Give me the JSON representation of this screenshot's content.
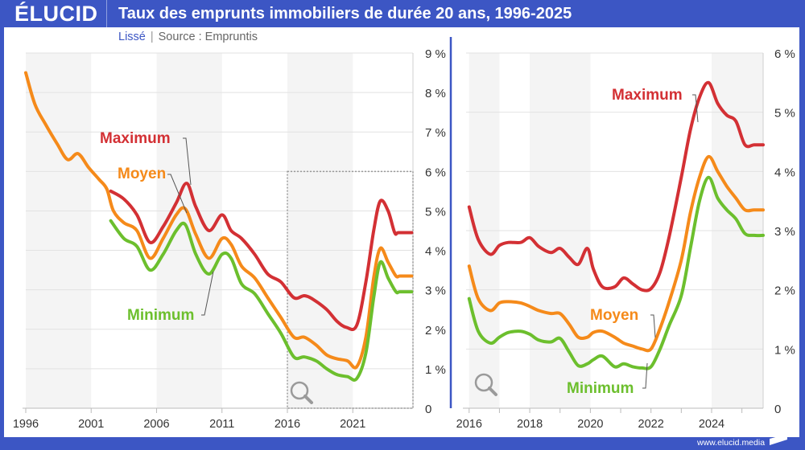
{
  "header": {
    "logo": "ÉLUCID",
    "title": "Taux des emprunts immobiliers de durée 20 ans, 1996-2025",
    "subtitle_mode": "Lissé",
    "subtitle_source": "Source : Empruntis"
  },
  "footer": {
    "url": "www.elucid.media"
  },
  "colors": {
    "brand": "#3c56c4",
    "maximum": "#d33034",
    "moyen": "#f58a1a",
    "minimum": "#6cbf2d"
  },
  "chart_data": [
    {
      "type": "line",
      "title": "Taux des emprunts immobiliers de durée 20 ans, 1996-2025",
      "xlabel": "",
      "ylabel": "",
      "xlim": [
        1996,
        2025.6
      ],
      "ylim": [
        0,
        9
      ],
      "x_ticks": [
        1996,
        2001,
        2006,
        2011,
        2016,
        2021
      ],
      "y_ticks": [
        {
          "v": 0,
          "label": "0"
        },
        {
          "v": 1,
          "label": "1 %"
        },
        {
          "v": 2,
          "label": "2 %"
        },
        {
          "v": 3,
          "label": "3 %"
        },
        {
          "v": 4,
          "label": "4 %"
        },
        {
          "v": 5,
          "label": "5 %"
        },
        {
          "v": 6,
          "label": "6 %"
        },
        {
          "v": 7,
          "label": "7 %"
        },
        {
          "v": 8,
          "label": "8 %"
        },
        {
          "v": 9,
          "label": "9 %"
        }
      ],
      "grid": true,
      "zoom_box": {
        "x_range": [
          2016,
          2025.6
        ],
        "y_range": [
          0,
          6
        ]
      },
      "series": [
        {
          "name": "Maximum",
          "key": "maximum",
          "x": [
            2002.5,
            2003.5,
            2004.5,
            2005.5,
            2006.5,
            2007.5,
            2008.3,
            2009,
            2010,
            2011,
            2011.7,
            2012.5,
            2013.5,
            2014.5,
            2015.5,
            2016.5,
            2017.3,
            2018,
            2019,
            2019.8,
            2020.5,
            2021.3,
            2022,
            2022.6,
            2023.1,
            2023.7,
            2024.2,
            2024.5,
            2025.5
          ],
          "y": [
            5.5,
            5.3,
            4.9,
            4.2,
            4.6,
            5.2,
            5.7,
            5.1,
            4.5,
            4.9,
            4.5,
            4.3,
            3.9,
            3.4,
            3.2,
            2.8,
            2.85,
            2.75,
            2.5,
            2.2,
            2.05,
            2.1,
            3.2,
            4.5,
            5.25,
            5.0,
            4.45,
            4.45,
            4.45
          ]
        },
        {
          "name": "Moyen",
          "key": "moyen",
          "x": [
            1996,
            1996.7,
            1997.5,
            1998.4,
            1999.2,
            2000,
            2000.8,
            2001.6,
            2002.2,
            2002.7,
            2003.5,
            2004.5,
            2005.5,
            2006.5,
            2007.5,
            2008.2,
            2009,
            2010,
            2011,
            2011.7,
            2012.5,
            2013.5,
            2014.5,
            2015.5,
            2016.5,
            2017.3,
            2018.2,
            2019,
            2019.8,
            2020.6,
            2021.3,
            2022,
            2022.6,
            2023.1,
            2023.7,
            2024.3,
            2024.6,
            2025.5
          ],
          "y": [
            8.5,
            7.7,
            7.2,
            6.7,
            6.3,
            6.45,
            6.1,
            5.8,
            5.55,
            5.0,
            4.7,
            4.5,
            3.8,
            4.3,
            4.9,
            5.05,
            4.4,
            3.8,
            4.3,
            4.15,
            3.6,
            3.3,
            2.8,
            2.3,
            1.8,
            1.8,
            1.6,
            1.35,
            1.25,
            1.2,
            1.05,
            1.8,
            3.3,
            4.05,
            3.7,
            3.35,
            3.35,
            3.35
          ]
        },
        {
          "name": "Minimum",
          "key": "minimum",
          "x": [
            2002.5,
            2003.5,
            2004.5,
            2005.5,
            2006.5,
            2007.5,
            2008.2,
            2009,
            2010,
            2011,
            2011.7,
            2012.5,
            2013.5,
            2014.5,
            2015.5,
            2016.5,
            2017.3,
            2018.2,
            2019,
            2019.8,
            2020.6,
            2021.3,
            2022,
            2022.6,
            2023.1,
            2023.7,
            2024.3,
            2024.6,
            2025.5
          ],
          "y": [
            4.75,
            4.3,
            4.1,
            3.5,
            3.9,
            4.5,
            4.65,
            3.9,
            3.4,
            3.9,
            3.8,
            3.15,
            2.9,
            2.4,
            1.9,
            1.3,
            1.3,
            1.2,
            1.0,
            0.85,
            0.8,
            0.75,
            1.4,
            2.8,
            3.7,
            3.3,
            2.95,
            2.95,
            2.95
          ]
        }
      ],
      "annotations": [
        {
          "text": "Maximum",
          "series": "maximum"
        },
        {
          "text": "Moyen",
          "series": "moyen"
        },
        {
          "text": "Minimum",
          "series": "minimum"
        }
      ]
    },
    {
      "type": "line",
      "title": "Zoom 2016-2025",
      "xlabel": "",
      "ylabel": "",
      "xlim": [
        2015.9,
        2025.7
      ],
      "ylim": [
        0,
        6
      ],
      "x_ticks": [
        2016,
        2018,
        2020,
        2022,
        2024
      ],
      "y_ticks": [
        {
          "v": 0,
          "label": "0"
        },
        {
          "v": 1,
          "label": "1 %"
        },
        {
          "v": 2,
          "label": "2 %"
        },
        {
          "v": 3,
          "label": "3 %"
        },
        {
          "v": 4,
          "label": "4 %"
        },
        {
          "v": 5,
          "label": "5 %"
        },
        {
          "v": 6,
          "label": "6 %"
        }
      ],
      "grid": true,
      "series": [
        {
          "name": "Maximum",
          "key": "maximum",
          "x": [
            2016,
            2016.3,
            2016.7,
            2017,
            2017.3,
            2017.7,
            2018,
            2018.3,
            2018.7,
            2019,
            2019.3,
            2019.6,
            2019.9,
            2020.1,
            2020.4,
            2020.8,
            2021.1,
            2021.4,
            2021.7,
            2022,
            2022.3,
            2022.6,
            2023,
            2023.3,
            2023.6,
            2023.9,
            2024.2,
            2024.5,
            2024.8,
            2025.1,
            2025.4,
            2025.7
          ],
          "y": [
            3.4,
            2.85,
            2.6,
            2.75,
            2.8,
            2.8,
            2.88,
            2.73,
            2.63,
            2.7,
            2.55,
            2.43,
            2.7,
            2.35,
            2.05,
            2.05,
            2.2,
            2.1,
            2.0,
            2.02,
            2.3,
            2.9,
            3.9,
            4.7,
            5.25,
            5.5,
            5.15,
            4.95,
            4.85,
            4.45,
            4.45,
            4.45
          ]
        },
        {
          "name": "Moyen",
          "key": "moyen",
          "x": [
            2016,
            2016.3,
            2016.7,
            2017,
            2017.3,
            2017.7,
            2018,
            2018.3,
            2018.7,
            2019,
            2019.3,
            2019.6,
            2019.9,
            2020.1,
            2020.4,
            2020.8,
            2021.1,
            2021.4,
            2021.7,
            2022,
            2022.3,
            2022.6,
            2023,
            2023.3,
            2023.6,
            2023.9,
            2024.2,
            2024.5,
            2024.8,
            2025.1,
            2025.4,
            2025.7
          ],
          "y": [
            2.4,
            1.85,
            1.65,
            1.78,
            1.8,
            1.78,
            1.72,
            1.65,
            1.6,
            1.6,
            1.42,
            1.2,
            1.2,
            1.28,
            1.3,
            1.2,
            1.1,
            1.05,
            1.0,
            1.0,
            1.35,
            1.8,
            2.5,
            3.3,
            3.9,
            4.25,
            4.0,
            3.75,
            3.55,
            3.35,
            3.35,
            3.35
          ]
        },
        {
          "name": "Minimum",
          "key": "minimum",
          "x": [
            2016,
            2016.3,
            2016.7,
            2017,
            2017.3,
            2017.7,
            2018,
            2018.3,
            2018.7,
            2019,
            2019.3,
            2019.6,
            2019.9,
            2020.1,
            2020.4,
            2020.8,
            2021.1,
            2021.4,
            2021.7,
            2022,
            2022.3,
            2022.6,
            2023,
            2023.3,
            2023.6,
            2023.9,
            2024.2,
            2024.5,
            2024.8,
            2025.1,
            2025.4,
            2025.7
          ],
          "y": [
            1.85,
            1.3,
            1.1,
            1.2,
            1.28,
            1.3,
            1.25,
            1.15,
            1.12,
            1.18,
            0.95,
            0.72,
            0.75,
            0.82,
            0.88,
            0.7,
            0.75,
            0.7,
            0.68,
            0.7,
            1.0,
            1.4,
            1.9,
            2.7,
            3.5,
            3.9,
            3.55,
            3.35,
            3.2,
            2.95,
            2.92,
            2.92
          ]
        }
      ],
      "annotations": [
        {
          "text": "Maximum",
          "series": "maximum"
        },
        {
          "text": "Moyen",
          "series": "moyen"
        },
        {
          "text": "Minimum",
          "series": "minimum"
        }
      ]
    }
  ]
}
